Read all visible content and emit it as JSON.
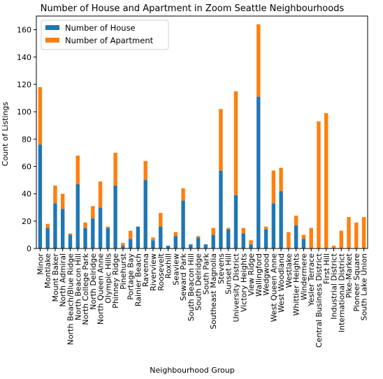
{
  "chart_data": {
    "type": "bar",
    "stacked": true,
    "title": "Number of House and Apartment in Zoom Seattle Neighbourhoods",
    "xlabel": "Neighbourhood Group",
    "ylabel": "Count of Listings",
    "ylim": [
      0,
      170
    ],
    "yticks": [
      0,
      20,
      40,
      60,
      80,
      100,
      120,
      140,
      160
    ],
    "legend_position": "top-left",
    "categories": [
      "Minor",
      "Montlake",
      "Mount Baker",
      "North Admiral",
      "North Beach/Blue Ridge",
      "North Beacon Hill",
      "North College Park",
      "North Delridge",
      "North Queen Anne",
      "Olympic Hills",
      "Phinney Ridge",
      "Pinehurst",
      "Portage Bay",
      "Rainier Beach",
      "Ravenna",
      "Riverview",
      "Roosevelt",
      "Roxhill",
      "Seaview",
      "Seward Park",
      "South Beacon Hill",
      "South Delridge",
      "South Park",
      "Southeast Magnolia",
      "Stevens",
      "Sunset Hill",
      "University District",
      "Victory Heights",
      "View Ridge",
      "Wallingford",
      "Wedgwood",
      "West Queen Anne",
      "West Woodland",
      "Westlake",
      "Whittier Heights",
      "Windermere",
      "Yesler Terrace",
      "Central Business District",
      "First Hill",
      "Industrial District",
      "International District",
      "Pike-Market",
      "Pioneer Square",
      "South Lake Union"
    ],
    "series": [
      {
        "name": "Number of House",
        "color": "#1f77b4",
        "values": [
          76,
          15,
          33,
          29,
          10,
          47,
          15,
          22,
          30,
          15,
          46,
          2,
          7,
          16,
          50,
          6,
          16,
          2,
          9,
          35,
          3,
          8,
          3,
          10,
          57,
          14,
          39,
          11,
          3,
          111,
          14,
          33,
          42,
          0,
          17,
          7,
          0,
          0,
          0,
          0,
          0,
          0,
          0,
          0
        ]
      },
      {
        "name": "Number of Apartment",
        "color": "#ff7f0e",
        "values": [
          42,
          3,
          13,
          11,
          1,
          21,
          4,
          9,
          19,
          1,
          24,
          2,
          6,
          0,
          14,
          2,
          10,
          0,
          3,
          9,
          0,
          1,
          0,
          5,
          45,
          1,
          76,
          4,
          3,
          53,
          2,
          24,
          17,
          12,
          7,
          3,
          15,
          93,
          99,
          2,
          13,
          23,
          19,
          23
        ]
      }
    ],
    "grid": false
  }
}
